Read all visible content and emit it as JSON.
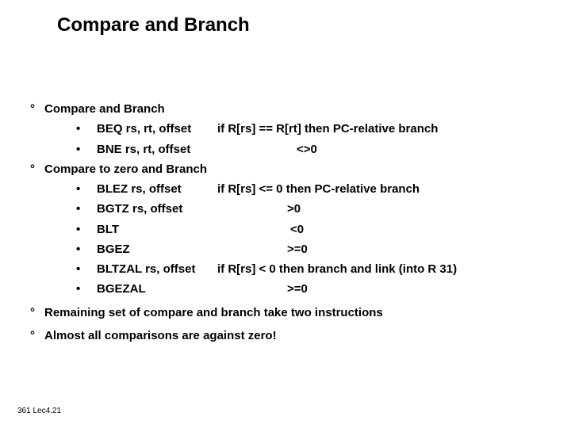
{
  "title": "Compare and Branch",
  "footer": "361  Lec4.21",
  "sections": [
    {
      "label": "Compare and Branch",
      "items": [
        {
          "m": "BEQ rs, rt, offset",
          "desc": "if R[rs] == R[rt] then PC-relative branch"
        },
        {
          "m": "BNE rs, rt, offset",
          "desc": "<>0",
          "desc_indent": 100
        }
      ]
    },
    {
      "label": "Compare to zero and Branch",
      "items": [
        {
          "m": "BLEZ rs, offset",
          "desc": "if R[rs] <= 0 then PC-relative branch"
        },
        {
          "m": "BGTZ rs, offset",
          "desc": ">0",
          "desc_indent": 88
        },
        {
          "m": "BLT",
          "desc": "<0",
          "desc_indent": 92
        },
        {
          "m": "BGEZ",
          "desc": ">=0",
          "desc_indent": 88
        },
        {
          "m": "BLTZAL rs, offset",
          "desc": "if R[rs] < 0 then branch and link (into R 31)"
        },
        {
          "m": "BGEZAL",
          "desc": ">=0",
          "desc_indent": 88
        }
      ]
    },
    {
      "label": "Remaining set of compare and branch take two instructions",
      "items": []
    },
    {
      "label": "Almost all comparisons are against zero!",
      "items": []
    }
  ]
}
